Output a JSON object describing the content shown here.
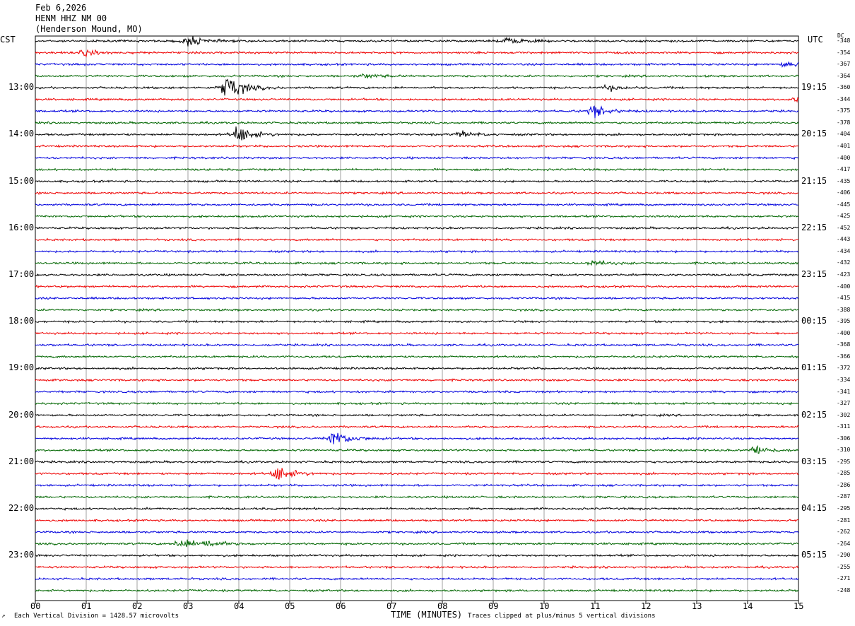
{
  "header": {
    "date": "Feb 6,2026",
    "station": "HENM HHZ NM 00",
    "location": "(Henderson Mound, MO)"
  },
  "left_axis_label": "CST",
  "right_axis_label": "UTC",
  "dc_label": "DC",
  "footer": {
    "vertical_division": "Each Vertical Division = 1428.57 microvolts",
    "clip_note": "Traces clipped at plus/minus 5 vertical divisions"
  },
  "colors": [
    "#000000",
    "#ee0000",
    "#0000dd",
    "#006600"
  ],
  "chart_data": {
    "type": "line",
    "xlabel": "TIME (MINUTES)",
    "x_ticks": [
      "00",
      "01",
      "02",
      "03",
      "04",
      "05",
      "06",
      "07",
      "08",
      "09",
      "10",
      "11",
      "12",
      "13",
      "14",
      "15"
    ],
    "xlim": [
      0,
      15
    ],
    "left_hour_labels": [
      "13:00",
      "14:00",
      "15:00",
      "16:00",
      "17:00",
      "18:00",
      "19:00",
      "20:00",
      "21:00",
      "22:00",
      "23:00"
    ],
    "right_hour_labels": [
      "19:15",
      "20:15",
      "21:15",
      "22:15",
      "23:15",
      "00:15",
      "01:15",
      "02:15",
      "03:15",
      "04:15",
      "05:15"
    ],
    "dc_values": [
      "-348",
      "-354",
      "-367",
      "-364",
      "-360",
      "-344",
      "-375",
      "-378",
      "-404",
      "-401",
      "-400",
      "-417",
      "-435",
      "-406",
      "-445",
      "-425",
      "-452",
      "-443",
      "-434",
      "-432",
      "-423",
      "-400",
      "-415",
      "-388",
      "-395",
      "-400",
      "-368",
      "-366",
      "-372",
      "-334",
      "-341",
      "-327",
      "-302",
      "-311",
      "-306",
      "-310",
      "-295",
      "-285",
      "-286",
      "-287",
      "-295",
      "-281",
      "-262",
      "-264",
      "-290",
      "-255",
      "-271",
      "-248"
    ],
    "trace_count": 48,
    "events": [
      {
        "trace": 0,
        "minute": 3.0,
        "amp": 0.9
      },
      {
        "trace": 0,
        "minute": 9.3,
        "amp": 0.6
      },
      {
        "trace": 1,
        "minute": 1.0,
        "amp": 0.5
      },
      {
        "trace": 2,
        "minute": 14.8,
        "amp": 0.5
      },
      {
        "trace": 3,
        "minute": 6.5,
        "amp": 0.4
      },
      {
        "trace": 4,
        "minute": 3.8,
        "amp": 2.4
      },
      {
        "trace": 4,
        "minute": 11.3,
        "amp": 0.4
      },
      {
        "trace": 5,
        "minute": 15.0,
        "amp": 0.5
      },
      {
        "trace": 6,
        "minute": 11.0,
        "amp": 1.1
      },
      {
        "trace": 8,
        "minute": 4.0,
        "amp": 1.6
      },
      {
        "trace": 8,
        "minute": 8.4,
        "amp": 0.5
      },
      {
        "trace": 19,
        "minute": 11.0,
        "amp": 0.5
      },
      {
        "trace": 34,
        "minute": 5.9,
        "amp": 1.5
      },
      {
        "trace": 35,
        "minute": 14.2,
        "amp": 0.8
      },
      {
        "trace": 37,
        "minute": 4.8,
        "amp": 1.4
      },
      {
        "trace": 43,
        "minute": 2.9,
        "amp": 0.8
      },
      {
        "trace": 43,
        "minute": 3.4,
        "amp": 0.6
      }
    ]
  }
}
